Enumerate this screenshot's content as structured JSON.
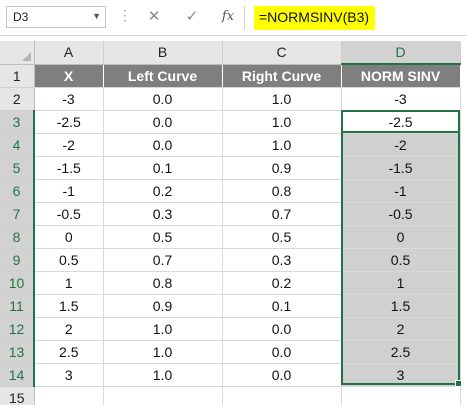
{
  "formula_bar": {
    "name_box": "D3",
    "cancel_symbol": "✕",
    "enter_symbol": "✓",
    "fx_label": "fx",
    "formula": "=NORMSINV(B3)"
  },
  "grid": {
    "columns": [
      "A",
      "B",
      "C",
      "D"
    ],
    "selected_column": "D",
    "header_row": {
      "row": "1",
      "cells": [
        "X",
        "Left Curve",
        "Right Curve",
        "NORM SINV"
      ]
    },
    "rows": [
      {
        "row": "2",
        "cells": [
          "-3",
          "0.0",
          "1.0",
          "-3"
        ]
      },
      {
        "row": "3",
        "cells": [
          "-2.5",
          "0.0",
          "1.0",
          "-2.5"
        ]
      },
      {
        "row": "4",
        "cells": [
          "-2",
          "0.0",
          "1.0",
          "-2"
        ]
      },
      {
        "row": "5",
        "cells": [
          "-1.5",
          "0.1",
          "0.9",
          "-1.5"
        ]
      },
      {
        "row": "6",
        "cells": [
          "-1",
          "0.2",
          "0.8",
          "-1"
        ]
      },
      {
        "row": "7",
        "cells": [
          "-0.5",
          "0.3",
          "0.7",
          "-0.5"
        ]
      },
      {
        "row": "8",
        "cells": [
          "0",
          "0.5",
          "0.5",
          "0"
        ]
      },
      {
        "row": "9",
        "cells": [
          "0.5",
          "0.7",
          "0.3",
          "0.5"
        ]
      },
      {
        "row": "10",
        "cells": [
          "1",
          "0.8",
          "0.2",
          "1"
        ]
      },
      {
        "row": "11",
        "cells": [
          "1.5",
          "0.9",
          "0.1",
          "1.5"
        ]
      },
      {
        "row": "12",
        "cells": [
          "2",
          "1.0",
          "0.0",
          "2"
        ]
      },
      {
        "row": "13",
        "cells": [
          "2.5",
          "1.0",
          "0.0",
          "2.5"
        ]
      },
      {
        "row": "14",
        "cells": [
          "3",
          "1.0",
          "0.0",
          "3"
        ]
      }
    ],
    "empty_row": "15"
  },
  "colors": {
    "header_fill": "#7f7f7f",
    "selection_fill": "#d0d0d0",
    "selection_border": "#217346",
    "formula_highlight": "#ffff00"
  }
}
